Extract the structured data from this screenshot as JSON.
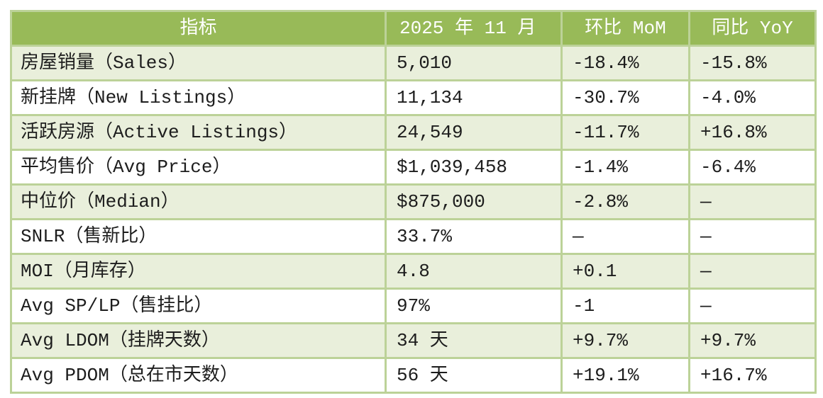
{
  "table": {
    "columns": [
      {
        "label": "指标"
      },
      {
        "label": "2025 年 11 月"
      },
      {
        "label": "环比 MoM"
      },
      {
        "label": "同比 YoY"
      }
    ],
    "rows": [
      {
        "indicator": "房屋销量（Sales）",
        "value": "5,010",
        "mom": "-18.4%",
        "yoy": "-15.8%"
      },
      {
        "indicator": "新挂牌（New Listings）",
        "value": "11,134",
        "mom": "-30.7%",
        "yoy": "-4.0%"
      },
      {
        "indicator": "活跃房源（Active Listings）",
        "value": "24,549",
        "mom": "-11.7%",
        "yoy": "+16.8%"
      },
      {
        "indicator": "平均售价（Avg Price）",
        "value": "$1,039,458",
        "mom": "-1.4%",
        "yoy": "-6.4%"
      },
      {
        "indicator": "中位价（Median）",
        "value": "$875,000",
        "mom": "-2.8%",
        "yoy": "—"
      },
      {
        "indicator": "SNLR（售新比）",
        "value": "33.7%",
        "mom": "—",
        "yoy": "—"
      },
      {
        "indicator": "MOI（月库存）",
        "value": "4.8",
        "mom": "+0.1",
        "yoy": "—"
      },
      {
        "indicator": "Avg SP/LP（售挂比）",
        "value": "97%",
        "mom": "-1",
        "yoy": "—"
      },
      {
        "indicator": "Avg LDOM（挂牌天数）",
        "value": "34 天",
        "mom": "+9.7%",
        "yoy": "+9.7%"
      },
      {
        "indicator": "Avg PDOM（总在市天数）",
        "value": "56 天",
        "mom": "+19.1%",
        "yoy": "+16.7%"
      }
    ]
  },
  "colors": {
    "header_bg": "#98ba58",
    "header_text": "#ffffff",
    "row_alt_bg": "#e9efdb",
    "row_bg": "#ffffff",
    "border": "#bcd298",
    "body_text": "#1d1d1d"
  }
}
